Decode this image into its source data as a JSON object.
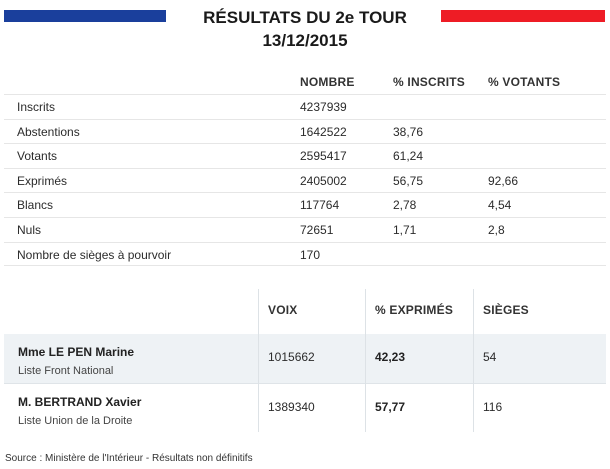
{
  "header": {
    "title_line1": "RÉSULTATS DU 2e TOUR",
    "title_line2": "13/12/2015",
    "flag_left_color": "#1a3f9c",
    "flag_right_color": "#ee1c25"
  },
  "summary": {
    "columns": [
      "NOMBRE",
      "% INSCRITS",
      "% VOTANTS"
    ],
    "rows": [
      {
        "label": "Inscrits",
        "nombre": "4237939",
        "pct_inscrits": "",
        "pct_votants": ""
      },
      {
        "label": "Abstentions",
        "nombre": "1642522",
        "pct_inscrits": "38,76",
        "pct_votants": ""
      },
      {
        "label": "Votants",
        "nombre": "2595417",
        "pct_inscrits": "61,24",
        "pct_votants": ""
      },
      {
        "label": "Exprimés",
        "nombre": "2405002",
        "pct_inscrits": "56,75",
        "pct_votants": "92,66"
      },
      {
        "label": "Blancs",
        "nombre": "117764",
        "pct_inscrits": "2,78",
        "pct_votants": "4,54"
      },
      {
        "label": "Nuls",
        "nombre": "72651",
        "pct_inscrits": "1,71",
        "pct_votants": "2,8"
      },
      {
        "label": "Nombre de sièges à pourvoir",
        "nombre": "170",
        "pct_inscrits": "",
        "pct_votants": ""
      }
    ]
  },
  "candidates": {
    "columns": [
      "VOIX",
      "% EXPRIMÉS",
      "SIÈGES"
    ],
    "rows": [
      {
        "name": "Mme LE PEN Marine",
        "list": "Liste Front National",
        "voix": "1015662",
        "pct_exprimes": "42,23",
        "sieges": "54"
      },
      {
        "name": "M. BERTRAND Xavier",
        "list": "Liste Union de la Droite",
        "voix": "1389340",
        "pct_exprimes": "57,77",
        "sieges": "116"
      }
    ]
  },
  "footer": {
    "source": "Source : Ministère de l'Intérieur - Résultats non définitifs"
  }
}
